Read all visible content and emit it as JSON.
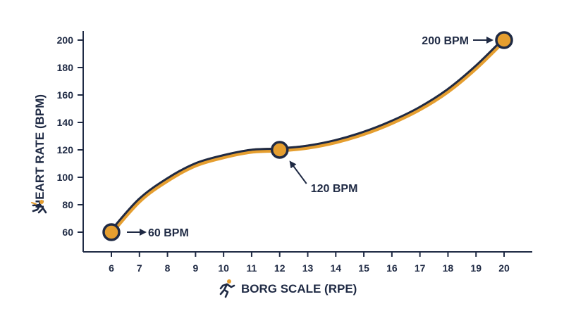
{
  "colors": {
    "line": "#1f2a44",
    "accent": "#e59e2f",
    "background": "#ffffff"
  },
  "icons": {
    "x_axis_icon": "runner-icon",
    "y_axis_icon": "falling-runner-icon"
  },
  "chart_data": {
    "type": "line",
    "xlabel": "BORG SCALE (RPE)",
    "ylabel": "HEART RATE (BPM)",
    "xlim": [
      6,
      20
    ],
    "ylim": [
      60,
      200
    ],
    "x_ticks": [
      6,
      7,
      8,
      9,
      10,
      11,
      12,
      13,
      14,
      15,
      16,
      17,
      18,
      19,
      20
    ],
    "y_ticks": [
      60,
      80,
      100,
      120,
      140,
      160,
      180,
      200
    ],
    "grid": false,
    "series": [
      {
        "x": [
          6,
          7,
          8,
          9,
          10,
          11,
          12,
          13,
          14,
          15,
          16,
          17,
          18,
          19,
          20
        ],
        "y": [
          60,
          83,
          98,
          109,
          115,
          119,
          120,
          122,
          126,
          132,
          140,
          150,
          163,
          180,
          200
        ]
      }
    ],
    "markers": [
      {
        "x": 6,
        "y": 60
      },
      {
        "x": 12,
        "y": 120
      },
      {
        "x": 20,
        "y": 200
      }
    ],
    "annotations": [
      {
        "text": "60 BPM",
        "x": 6,
        "y": 60,
        "placement": "right"
      },
      {
        "text": "120 BPM",
        "x": 12,
        "y": 120,
        "placement": "below-right"
      },
      {
        "text": "200 BPM",
        "x": 20,
        "y": 200,
        "placement": "left"
      }
    ]
  }
}
